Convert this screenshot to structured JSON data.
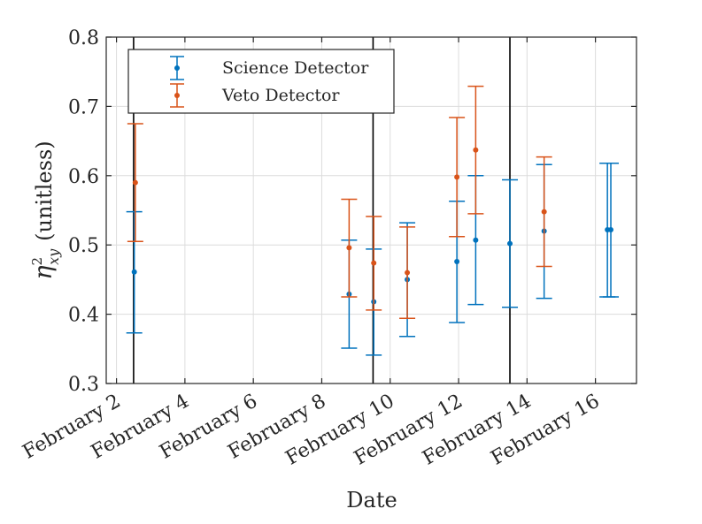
{
  "chart_data": {
    "type": "scatter",
    "style": "errorbar",
    "title": "",
    "xlabel": "Date",
    "ylabel_main": "η",
    "ylabel_sup": "2",
    "ylabel_sub": "xy",
    "ylabel_suffix": "(unitless)",
    "ylim": [
      0.3,
      0.8
    ],
    "yticks": [
      0.3,
      0.4,
      0.5,
      0.6,
      0.7,
      0.8
    ],
    "ytick_labels": [
      "0.3",
      "0.4",
      "0.5",
      "0.6",
      "0.7",
      "0.8"
    ],
    "xlim": [
      1.7,
      17.2
    ],
    "xticks": [
      2,
      4,
      6,
      8,
      10,
      12,
      14,
      16
    ],
    "xtick_labels": [
      "February 2",
      "February 4",
      "February 6",
      "February 8",
      "February 10",
      "February 12",
      "February 14",
      "February 16"
    ],
    "grid": true,
    "legend_position": "top-left",
    "vertical_lines": [
      2.5,
      9.5,
      13.5
    ],
    "series": [
      {
        "name": "Science Detector",
        "color": "#0072bd",
        "points": [
          {
            "x": 2.52,
            "y": 0.461,
            "low": 0.373,
            "high": 0.548
          },
          {
            "x": 8.8,
            "y": 0.429,
            "low": 0.351,
            "high": 0.507
          },
          {
            "x": 9.52,
            "y": 0.418,
            "low": 0.341,
            "high": 0.494
          },
          {
            "x": 10.5,
            "y": 0.45,
            "low": 0.368,
            "high": 0.532
          },
          {
            "x": 11.95,
            "y": 0.476,
            "low": 0.388,
            "high": 0.563
          },
          {
            "x": 12.5,
            "y": 0.507,
            "low": 0.414,
            "high": 0.6
          },
          {
            "x": 13.5,
            "y": 0.502,
            "low": 0.41,
            "high": 0.594
          },
          {
            "x": 14.5,
            "y": 0.52,
            "low": 0.423,
            "high": 0.616
          },
          {
            "x": 16.35,
            "y": 0.522,
            "low": 0.425,
            "high": 0.618
          },
          {
            "x": 16.45,
            "y": 0.522,
            "low": 0.425,
            "high": 0.618
          }
        ]
      },
      {
        "name": "Veto Detector",
        "color": "#d95319",
        "points": [
          {
            "x": 2.55,
            "y": 0.59,
            "low": 0.505,
            "high": 0.675
          },
          {
            "x": 8.8,
            "y": 0.496,
            "low": 0.425,
            "high": 0.566
          },
          {
            "x": 9.52,
            "y": 0.474,
            "low": 0.406,
            "high": 0.541
          },
          {
            "x": 10.5,
            "y": 0.46,
            "low": 0.394,
            "high": 0.526
          },
          {
            "x": 11.95,
            "y": 0.598,
            "low": 0.512,
            "high": 0.684
          },
          {
            "x": 12.5,
            "y": 0.637,
            "low": 0.545,
            "high": 0.729
          },
          {
            "x": 14.5,
            "y": 0.548,
            "low": 0.469,
            "high": 0.627
          }
        ]
      }
    ]
  }
}
